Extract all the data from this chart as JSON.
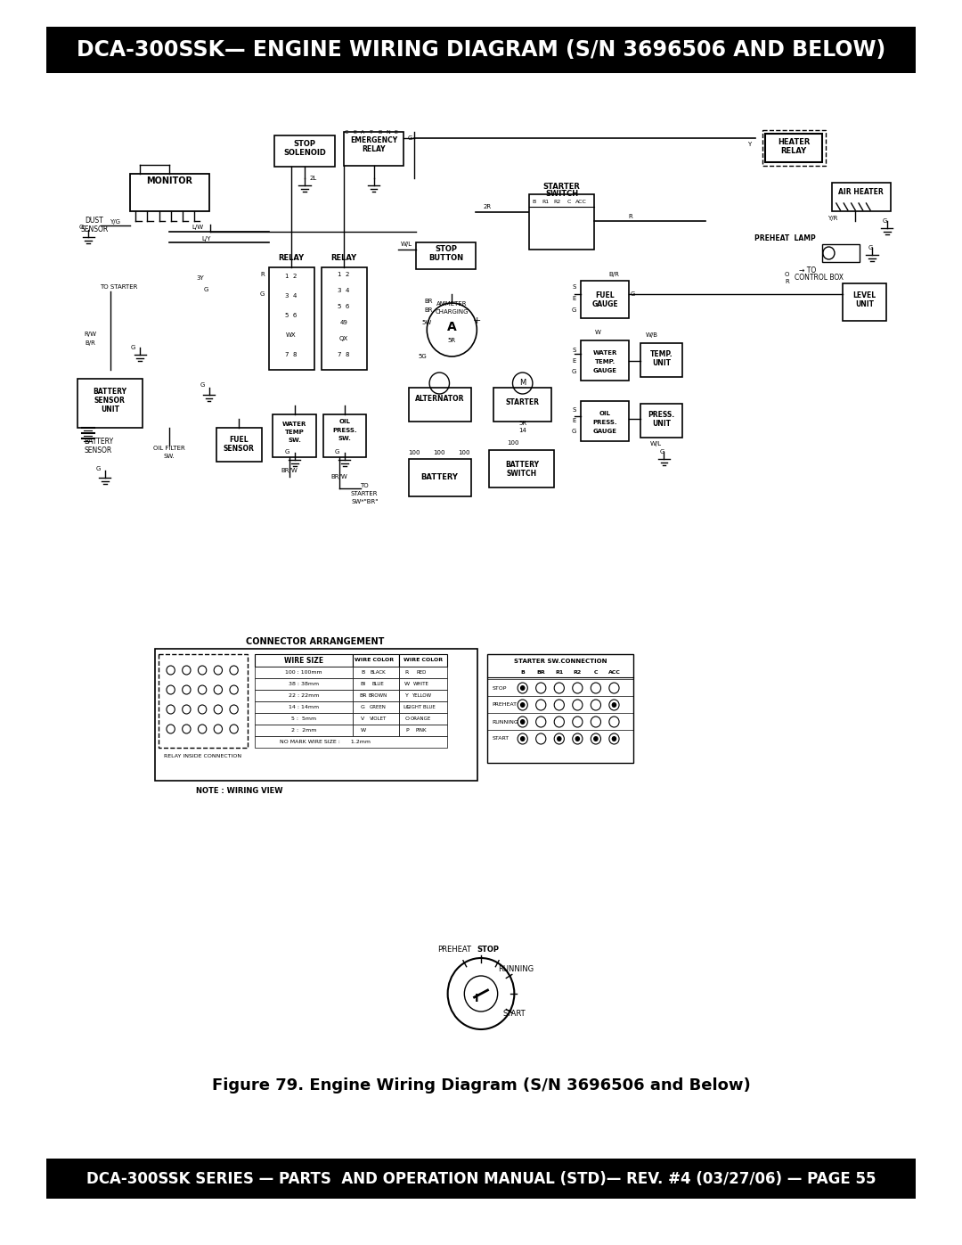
{
  "title_text": "DCA-300SSK— ENGINE WIRING DIAGRAM (S/N 3696506 AND BELOW)",
  "footer_text": "DCA-300SSK SERIES — PARTS  AND OPERATION MANUAL (STD)— REV. #4 (03/27/06) — PAGE 55",
  "caption_text": "Figure 79. Engine Wiring Diagram (S/N 3696506 and Below)",
  "title_bg": "#000000",
  "title_fg": "#ffffff",
  "footer_bg": "#000000",
  "footer_fg": "#ffffff",
  "page_bg": "#ffffff",
  "title_fontsize": 17,
  "footer_fontsize": 12,
  "caption_fontsize": 13
}
